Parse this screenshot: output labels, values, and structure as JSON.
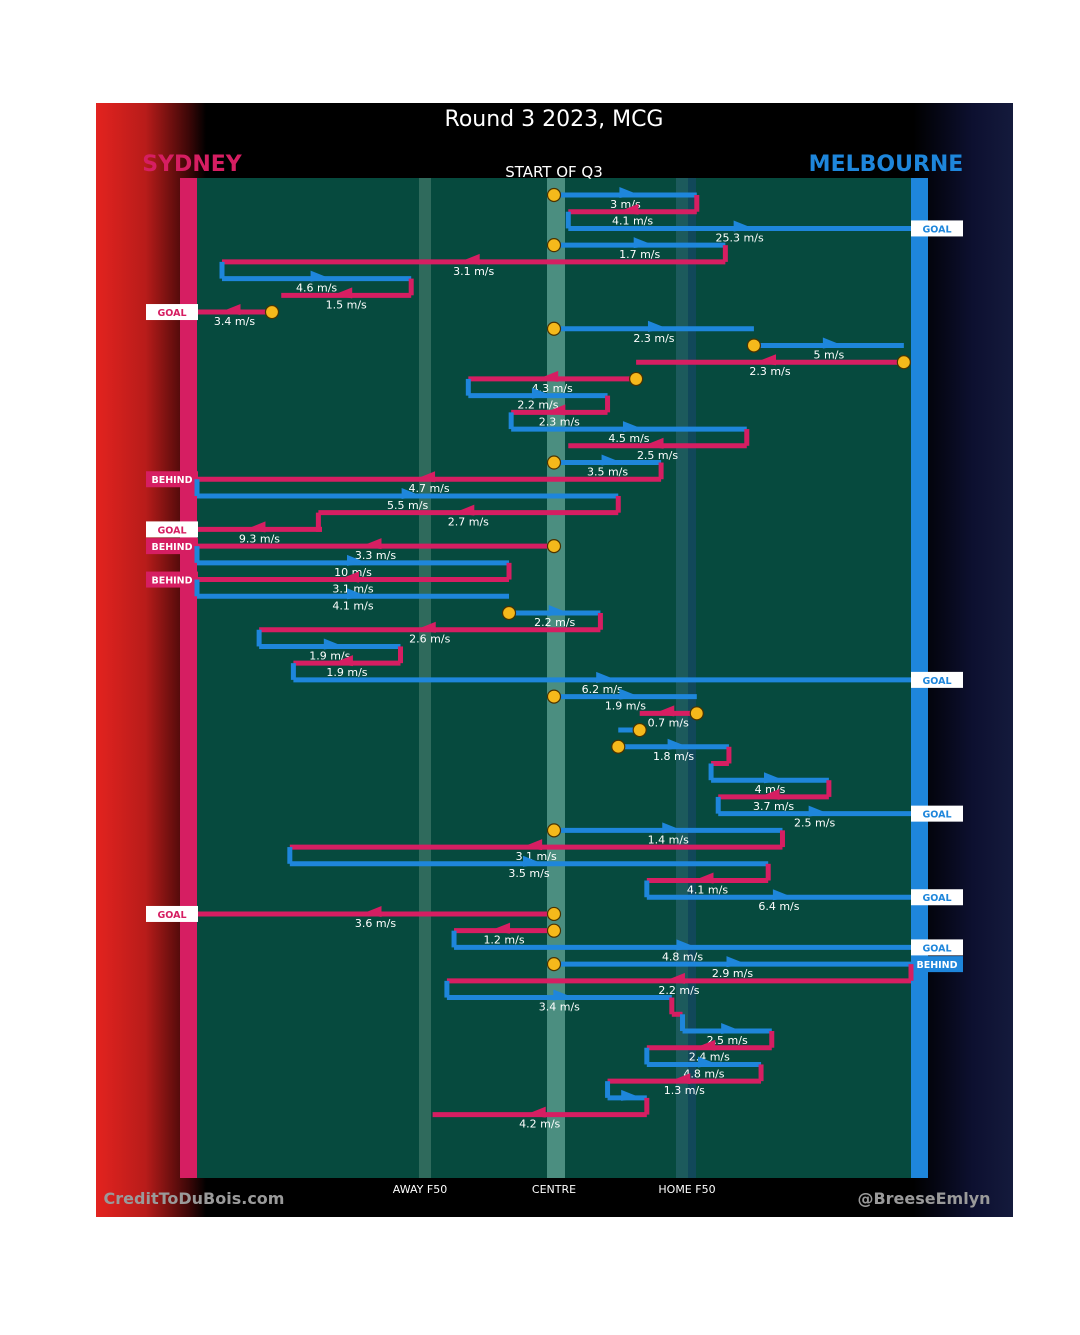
{
  "title": "Round 3 2023, MCG",
  "subtitle": "START OF Q3",
  "teams": {
    "left": {
      "name": "SYDNEY",
      "color": "#d61e62"
    },
    "right": {
      "name": "MELBOURNE",
      "color": "#1e86db"
    }
  },
  "axis_labels": {
    "away": "AWAY F50",
    "centre": "CENTRE",
    "home": "HOME F50"
  },
  "credits": {
    "left": "CreditToDuBois.com",
    "right": "@BreeseEmlyn"
  },
  "colors": {
    "field": "#064a3e",
    "sydney": "#d61e62",
    "melbourne": "#1e86db",
    "stoppage": "#f5b91b"
  },
  "chart_data": {
    "type": "line",
    "description_of_axes": "x = field position (Sydney goal = 0, centre = 0.5, Melbourne goal = 1)",
    "x_markers": {
      "away_f50": 0.296,
      "centre": 0.5,
      "home_f50": 0.661
    },
    "chains": [
      {
        "team": "MEL",
        "x0": 0.5,
        "x1": 0.7,
        "speed": "3 m/s",
        "start": "stoppage"
      },
      {
        "team": "SYD",
        "x0": 0.7,
        "x1": 0.52,
        "speed": "4.1 m/s"
      },
      {
        "team": "MEL",
        "x0": 0.52,
        "x1": 1.0,
        "speed": "25.3 m/s",
        "end": "GOAL",
        "side": "right"
      },
      {
        "team": "MEL",
        "x0": 0.5,
        "x1": 0.74,
        "speed": "1.7 m/s",
        "start": "stoppage"
      },
      {
        "team": "SYD",
        "x0": 0.74,
        "x1": 0.035,
        "speed": "3.1 m/s"
      },
      {
        "team": "MEL",
        "x0": 0.035,
        "x1": 0.3,
        "speed": "4.6 m/s"
      },
      {
        "team": "SYD",
        "x0": 0.3,
        "x1": 0.118,
        "speed": "1.5 m/s"
      },
      {
        "team": "SYD",
        "x0": 0.105,
        "x1": 0.0,
        "speed": "3.4 m/s",
        "start": "stoppage",
        "end": "GOAL",
        "side": "left"
      },
      {
        "team": "MEL",
        "x0": 0.5,
        "x1": 0.78,
        "speed": "2.3 m/s",
        "start": "stoppage"
      },
      {
        "team": "MEL",
        "x0": 0.78,
        "x1": 0.99,
        "speed": "5 m/s",
        "start": "stoppage"
      },
      {
        "team": "SYD",
        "x0": 0.99,
        "x1": 0.615,
        "speed": "2.3 m/s",
        "start": "stoppage"
      },
      {
        "team": "SYD",
        "x0": 0.615,
        "x1": 0.38,
        "speed": "4.3 m/s",
        "start": "stoppage"
      },
      {
        "team": "MEL",
        "x0": 0.38,
        "x1": 0.575,
        "speed": "2.2 m/s"
      },
      {
        "team": "SYD",
        "x0": 0.575,
        "x1": 0.44,
        "speed": "2.3 m/s"
      },
      {
        "team": "MEL",
        "x0": 0.44,
        "x1": 0.77,
        "speed": "4.5 m/s"
      },
      {
        "team": "SYD",
        "x0": 0.77,
        "x1": 0.52,
        "speed": "2.5 m/s"
      },
      {
        "team": "MEL",
        "x0": 0.5,
        "x1": 0.65,
        "speed": "3.5 m/s",
        "start": "stoppage"
      },
      {
        "team": "SYD",
        "x0": 0.65,
        "x1": 0.0,
        "speed": "4.7 m/s",
        "end": "BEHIND",
        "side": "left"
      },
      {
        "team": "MEL",
        "x0": 0.0,
        "x1": 0.59,
        "speed": "5.5 m/s"
      },
      {
        "team": "SYD",
        "x0": 0.59,
        "x1": 0.17,
        "speed": "2.7 m/s"
      },
      {
        "team": "SYD",
        "x0": 0.175,
        "x1": 0.0,
        "speed": "9.3 m/s",
        "end": "GOAL",
        "side": "left"
      },
      {
        "team": "SYD",
        "x0": 0.5,
        "x1": 0.0,
        "speed": "3.3 m/s",
        "start": "stoppage",
        "end": "BEHIND",
        "side": "left"
      },
      {
        "team": "MEL",
        "x0": 0.0,
        "x1": 0.437,
        "speed": "10 m/s"
      },
      {
        "team": "SYD",
        "x0": 0.437,
        "x1": 0.0,
        "speed": "3.1 m/s",
        "end": "BEHIND",
        "side": "left"
      },
      {
        "team": "MEL",
        "x0": 0.0,
        "x1": 0.437,
        "speed": "4.1 m/s"
      },
      {
        "team": "MEL",
        "x0": 0.437,
        "x1": 0.565,
        "speed": "2.2 m/s",
        "start": "stoppage"
      },
      {
        "team": "SYD",
        "x0": 0.565,
        "x1": 0.087,
        "speed": "2.6 m/s"
      },
      {
        "team": "MEL",
        "x0": 0.087,
        "x1": 0.285,
        "speed": "1.9 m/s"
      },
      {
        "team": "SYD",
        "x0": 0.285,
        "x1": 0.135,
        "speed": "1.9 m/s"
      },
      {
        "team": "MEL",
        "x0": 0.135,
        "x1": 1.0,
        "speed": "6.2 m/s",
        "end": "GOAL",
        "side": "right"
      },
      {
        "team": "MEL",
        "x0": 0.5,
        "x1": 0.7,
        "speed": "1.9 m/s",
        "start": "stoppage"
      },
      {
        "team": "SYD",
        "x0": 0.7,
        "x1": 0.62,
        "speed": "0.7 m/s",
        "start": "stoppage"
      },
      {
        "team": "MEL",
        "x0": 0.62,
        "x1": 0.59,
        "speed": "",
        "start": "stoppage"
      },
      {
        "team": "MEL",
        "x0": 0.59,
        "x1": 0.745,
        "speed": "1.8 m/s",
        "start": "stoppage"
      },
      {
        "team": "SYD",
        "x0": 0.745,
        "x1": 0.72,
        "speed": ""
      },
      {
        "team": "MEL",
        "x0": 0.72,
        "x1": 0.885,
        "speed": "4 m/s"
      },
      {
        "team": "SYD",
        "x0": 0.885,
        "x1": 0.73,
        "speed": "3.7 m/s"
      },
      {
        "team": "MEL",
        "x0": 0.73,
        "x1": 1.0,
        "speed": "2.5 m/s",
        "end": "GOAL",
        "side": "right"
      },
      {
        "team": "MEL",
        "x0": 0.5,
        "x1": 0.82,
        "speed": "1.4 m/s",
        "start": "stoppage"
      },
      {
        "team": "SYD",
        "x0": 0.82,
        "x1": 0.13,
        "speed": "3.1 m/s"
      },
      {
        "team": "MEL",
        "x0": 0.13,
        "x1": 0.8,
        "speed": "3.5 m/s"
      },
      {
        "team": "SYD",
        "x0": 0.8,
        "x1": 0.63,
        "speed": "4.1 m/s"
      },
      {
        "team": "MEL",
        "x0": 0.63,
        "x1": 1.0,
        "speed": "6.4 m/s",
        "end": "GOAL",
        "side": "right"
      },
      {
        "team": "SYD",
        "x0": 0.5,
        "x1": 0.0,
        "speed": "3.6 m/s",
        "start": "stoppage",
        "end": "GOAL",
        "side": "left"
      },
      {
        "team": "SYD",
        "x0": 0.5,
        "x1": 0.36,
        "speed": "1.2 m/s",
        "start": "stoppage"
      },
      {
        "team": "MEL",
        "x0": 0.36,
        "x1": 1.0,
        "speed": "4.8 m/s",
        "end": "GOAL",
        "side": "right"
      },
      {
        "team": "MEL",
        "x0": 0.5,
        "x1": 1.0,
        "speed": "2.9 m/s",
        "start": "stoppage",
        "end": "BEHIND",
        "side": "right"
      },
      {
        "team": "SYD",
        "x0": 1.0,
        "x1": 0.35,
        "speed": "2.2 m/s"
      },
      {
        "team": "MEL",
        "x0": 0.35,
        "x1": 0.665,
        "speed": "3.4 m/s"
      },
      {
        "team": "SYD",
        "x0": 0.665,
        "x1": 0.68,
        "speed": ""
      },
      {
        "team": "MEL",
        "x0": 0.68,
        "x1": 0.805,
        "speed": "2.5 m/s"
      },
      {
        "team": "SYD",
        "x0": 0.805,
        "x1": 0.63,
        "speed": "2.4 m/s"
      },
      {
        "team": "MEL",
        "x0": 0.63,
        "x1": 0.79,
        "speed": "4.8 m/s"
      },
      {
        "team": "SYD",
        "x0": 0.79,
        "x1": 0.575,
        "speed": "1.3 m/s"
      },
      {
        "team": "MEL",
        "x0": 0.575,
        "x1": 0.63,
        "speed": ""
      },
      {
        "team": "SYD",
        "x0": 0.63,
        "x1": 0.33,
        "speed": "4.2 m/s"
      }
    ]
  }
}
